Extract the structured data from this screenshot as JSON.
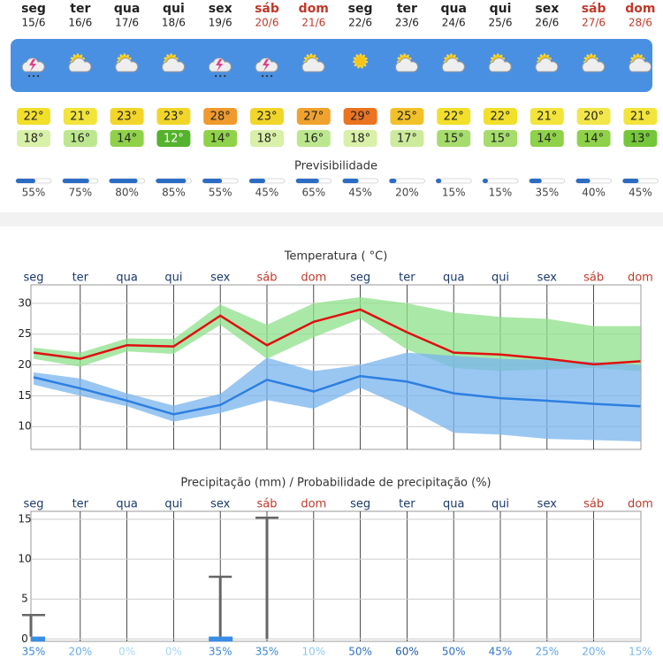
{
  "forecast": {
    "weekdays": [
      "seg",
      "ter",
      "qua",
      "qui",
      "sex",
      "sáb",
      "dom",
      "seg",
      "ter",
      "qua",
      "qui",
      "sex",
      "sáb",
      "dom"
    ],
    "dates": [
      "15/6",
      "16/6",
      "17/6",
      "18/6",
      "19/6",
      "20/6",
      "21/6",
      "22/6",
      "23/6",
      "24/6",
      "25/6",
      "26/6",
      "27/6",
      "28/6"
    ],
    "weekend": [
      false,
      false,
      false,
      false,
      false,
      true,
      true,
      false,
      false,
      false,
      false,
      false,
      true,
      true
    ],
    "icons": [
      "storm",
      "sun-cloud",
      "sun-cloud",
      "sun-cloud",
      "storm",
      "storm",
      "sun-cloud",
      "sun",
      "sun-cloud",
      "sun-cloud",
      "sun-cloud",
      "sun-cloud",
      "sun-cloud",
      "sun-cloud"
    ],
    "max_temps": [
      "22°",
      "21°",
      "23°",
      "23°",
      "28°",
      "23°",
      "27°",
      "29°",
      "25°",
      "22°",
      "22°",
      "21°",
      "20°",
      "21°"
    ],
    "max_colors": [
      "#f2df2a",
      "#f2e43a",
      "#f2d52a",
      "#f2d52a",
      "#ef9a2c",
      "#f2d52a",
      "#efa22e",
      "#ea7421",
      "#f2c12a",
      "#f2df2a",
      "#f2df2a",
      "#f2e43a",
      "#f2e74a",
      "#f2e43a"
    ],
    "min_temps": [
      "18°",
      "16°",
      "14°",
      "12°",
      "14°",
      "18°",
      "16°",
      "18°",
      "17°",
      "15°",
      "15°",
      "14°",
      "14°",
      "13°"
    ],
    "min_colors": [
      "#d9f0a8",
      "#bde78f",
      "#8fd24a",
      "#55b22c",
      "#8fd24a",
      "#d9f0a8",
      "#bde78f",
      "#d9f0a8",
      "#cdeb9c",
      "#a6dc6c",
      "#a6dc6c",
      "#8fd24a",
      "#8fd24a",
      "#76c63c"
    ],
    "predictability_title": "Previsibilidade",
    "predictability": [
      {
        "value": 55,
        "label": "55%"
      },
      {
        "value": 75,
        "label": "75%"
      },
      {
        "value": 80,
        "label": "80%"
      },
      {
        "value": 85,
        "label": "85%"
      },
      {
        "value": 55,
        "label": "55%"
      },
      {
        "value": 45,
        "label": "45%"
      },
      {
        "value": 65,
        "label": "65%"
      },
      {
        "value": 45,
        "label": "45%"
      },
      {
        "value": 20,
        "label": "20%"
      },
      {
        "value": 15,
        "label": "15%"
      },
      {
        "value": 15,
        "label": "15%"
      },
      {
        "value": 35,
        "label": "35%"
      },
      {
        "value": 40,
        "label": "40%"
      },
      {
        "value": 45,
        "label": "45%"
      }
    ]
  },
  "temperature_chart": {
    "title": "Temperatura ( °C)",
    "ylim": [
      6.3,
      33
    ],
    "yticks": [
      10,
      15,
      20,
      25,
      30
    ],
    "max_band": {
      "color": "#8ee08a",
      "high": [
        22.8,
        22,
        24.3,
        24.2,
        29.8,
        26.5,
        30,
        31,
        30,
        28.5,
        27.8,
        27.5,
        26.3,
        26.3
      ],
      "low": [
        21,
        19.7,
        22.2,
        21.8,
        26.5,
        21,
        24.5,
        27.5,
        22.5,
        19.5,
        19,
        19.3,
        19.5,
        19
      ]
    },
    "min_band": {
      "color": "#78b4ee",
      "high": [
        18.8,
        17.8,
        15.4,
        13.4,
        15.3,
        21.2,
        19,
        20,
        22,
        21.5,
        21,
        20.8,
        20.5,
        20
      ],
      "low": [
        16.8,
        15,
        13.3,
        10.8,
        12.2,
        14.3,
        12.9,
        16.3,
        13,
        9,
        8.7,
        8,
        7.8,
        7.6
      ]
    },
    "max_line": {
      "color": "#e01010",
      "values": [
        22,
        21,
        23.2,
        23,
        28,
        23.2,
        27,
        29,
        25.3,
        22,
        21.7,
        21,
        20.1,
        20.6
      ]
    },
    "min_line": {
      "color": "#2e7fe0",
      "values": [
        18,
        16.2,
        14.2,
        12,
        13.5,
        17.6,
        15.7,
        18.2,
        17.3,
        15.4,
        14.6,
        14.2,
        13.7,
        13.3
      ]
    }
  },
  "precipitation_chart": {
    "title": "Precipitação (mm) / Probabilidade de precipitação (%)",
    "ylim": [
      -0.3,
      16
    ],
    "yticks": [
      0,
      5,
      10,
      15
    ],
    "bar_color": "#3a8ee6",
    "range_color": "#666666",
    "amounts": [
      0.3,
      0,
      0,
      0,
      0.3,
      0,
      0,
      0,
      0,
      0,
      0,
      0,
      0,
      0
    ],
    "upper": [
      3,
      0,
      0,
      0,
      7.8,
      15.2,
      0,
      0,
      0,
      0,
      0,
      0,
      0,
      0
    ],
    "probability": [
      {
        "value": 35,
        "label": "35%"
      },
      {
        "value": 20,
        "label": "20%"
      },
      {
        "value": 0,
        "label": "0%"
      },
      {
        "value": 0,
        "label": "0%"
      },
      {
        "value": 35,
        "label": "35%"
      },
      {
        "value": 35,
        "label": "35%"
      },
      {
        "value": 10,
        "label": "10%"
      },
      {
        "value": 50,
        "label": "50%"
      },
      {
        "value": 60,
        "label": "60%"
      },
      {
        "value": 50,
        "label": "50%"
      },
      {
        "value": 45,
        "label": "45%"
      },
      {
        "value": 25,
        "label": "25%"
      },
      {
        "value": 20,
        "label": "20%"
      },
      {
        "value": 15,
        "label": "15%"
      }
    ],
    "probability_colors": [
      "#3a86d6",
      "#6aaee6",
      "#a8d8f0",
      "#a8d8f0",
      "#3a86d6",
      "#3a86d6",
      "#8cc8ee",
      "#2f6fc0",
      "#1f5aa8",
      "#2f6fc0",
      "#3576c6",
      "#5aa2e0",
      "#6aaee6",
      "#7ab8ea"
    ]
  }
}
